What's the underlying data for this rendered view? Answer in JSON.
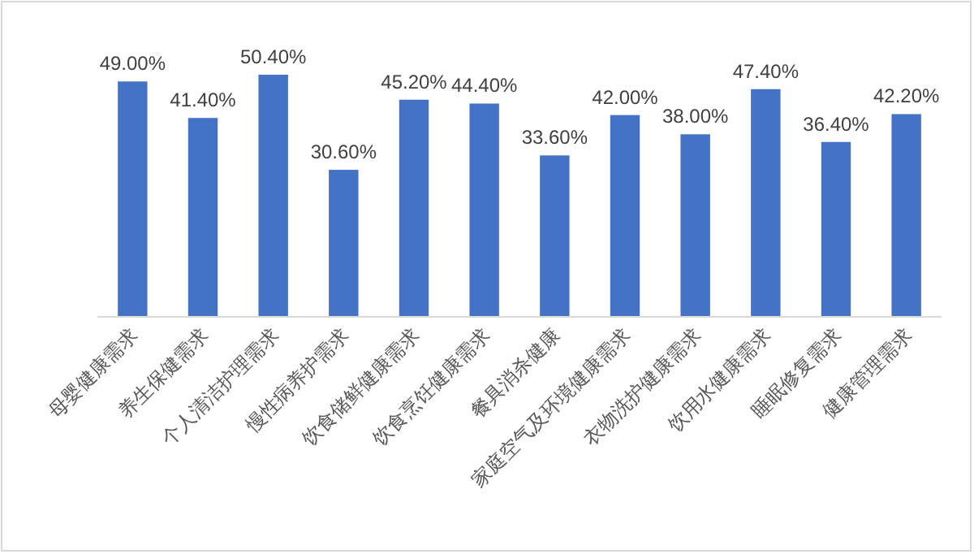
{
  "chart_data": {
    "type": "bar",
    "categories": [
      "母婴健康需求",
      "养生保健需求",
      "个人清洁护理需求",
      "慢性病养护需求",
      "饮食储鲜健康需求",
      "饮食烹饪健康需求",
      "餐具消杀健康",
      "家庭空气及环境健康需求",
      "衣物洗护健康需求",
      "饮用水健康需求",
      "睡眠修复需求",
      "健康管理需求"
    ],
    "values": [
      49.0,
      41.4,
      50.4,
      30.6,
      45.2,
      44.4,
      33.6,
      42.0,
      38.0,
      47.4,
      36.4,
      42.2
    ],
    "value_labels": [
      "49.00%",
      "41.40%",
      "50.40%",
      "30.60%",
      "45.20%",
      "44.40%",
      "33.60%",
      "42.00%",
      "38.00%",
      "47.40%",
      "36.40%",
      "42.20%"
    ],
    "color": "#4472c4"
  }
}
